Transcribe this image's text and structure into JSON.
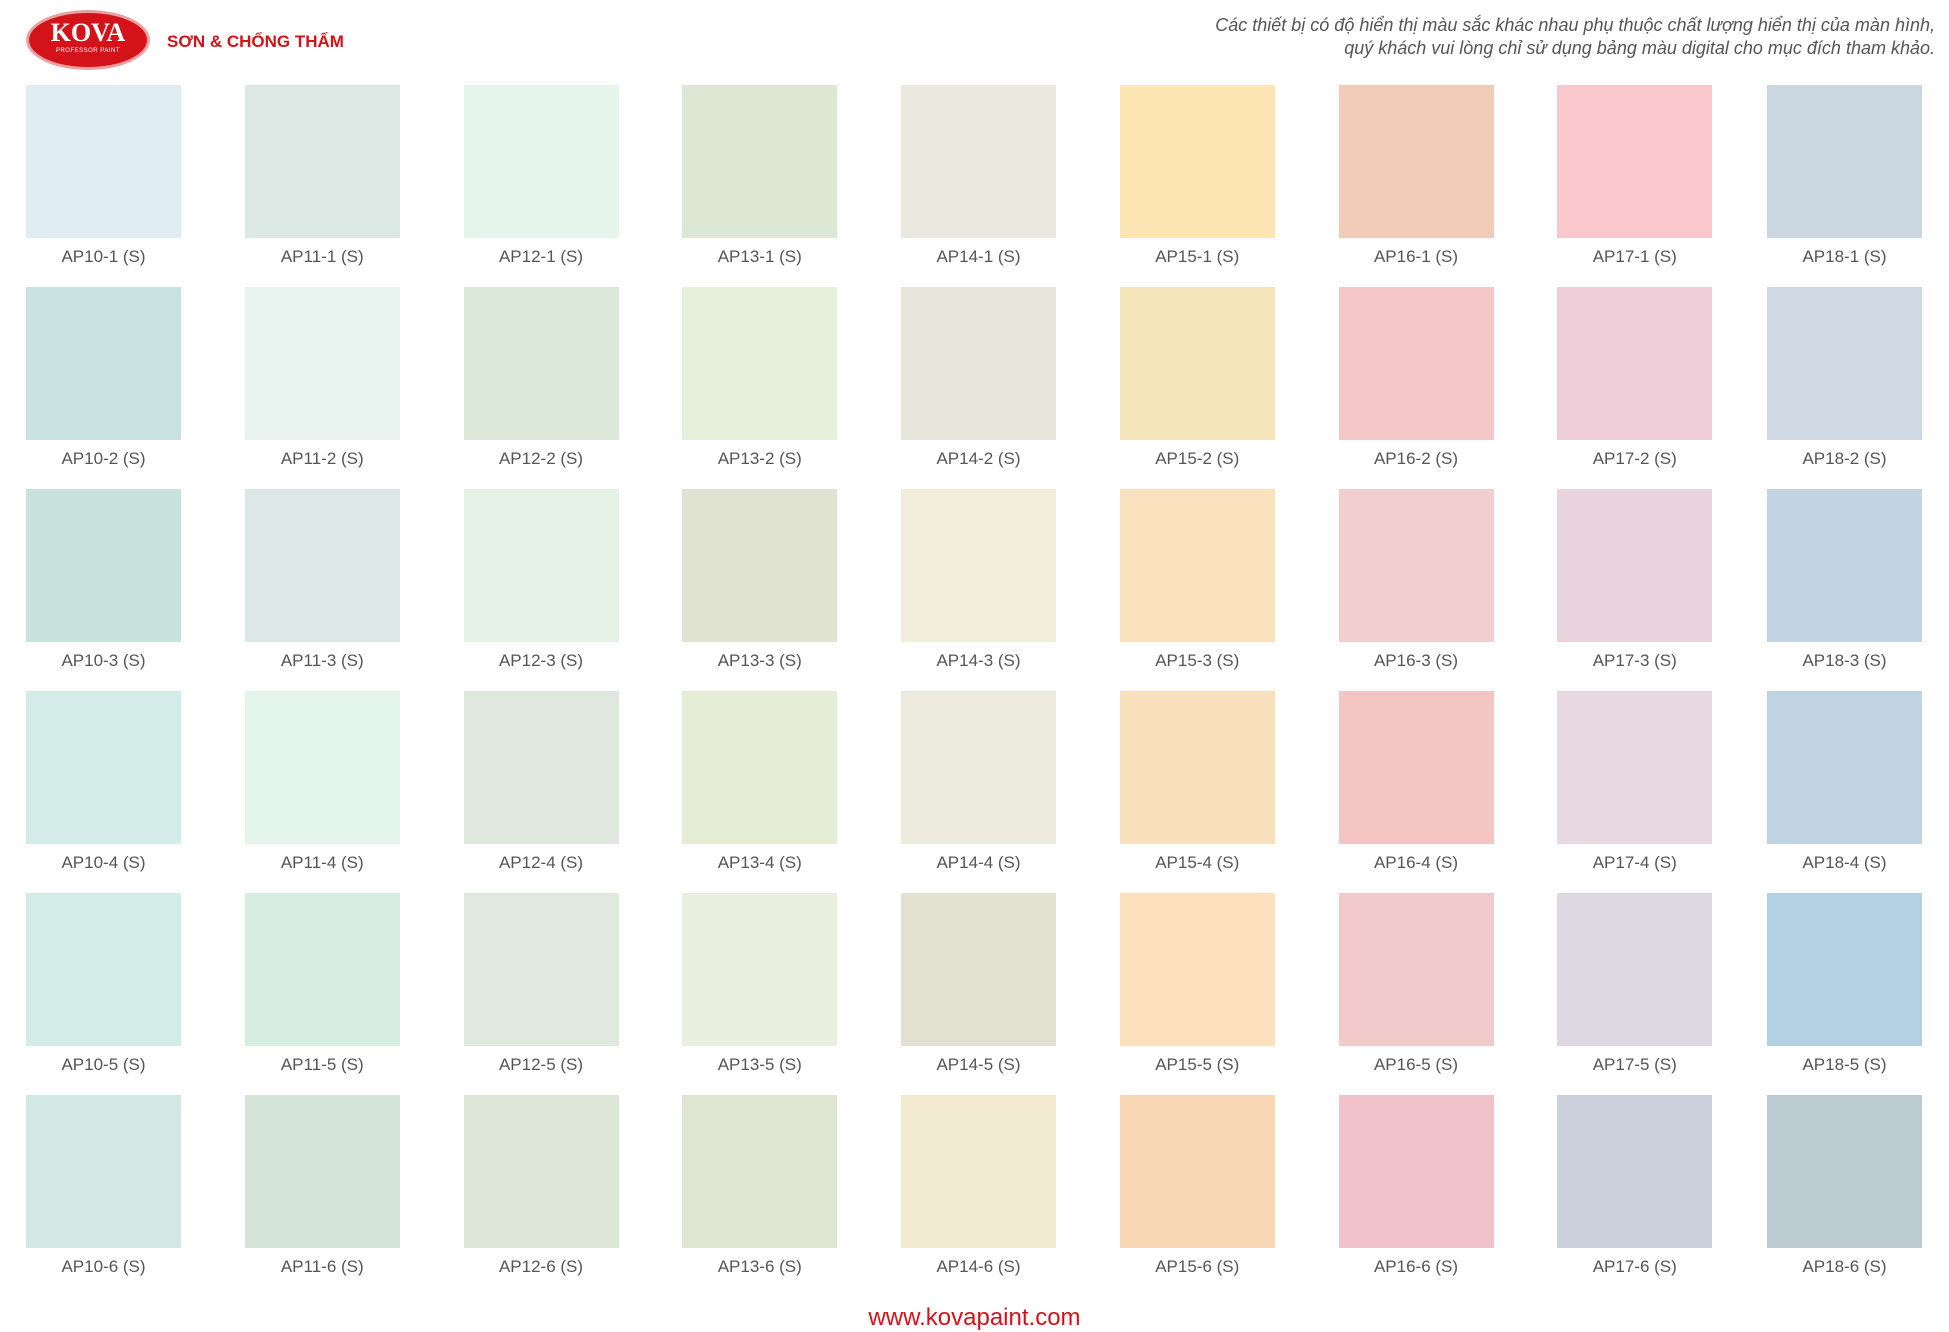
{
  "header": {
    "logo": {
      "name": "KOVA",
      "tagline": "PROFESSOR PAINT"
    },
    "title": "SƠN & CHỐNG THẤM",
    "disclaimer": [
      "Các thiết bị có độ hiển thị màu sắc khác nhau phụ thuộc chất lượng hiển thị của màn hình,",
      "quý khách vui lòng chỉ sử dụng bảng màu digital cho mục đích tham khảo."
    ]
  },
  "swatches": [
    [
      {
        "label": "AP10-1 (S)",
        "color": "#dfedf2"
      },
      {
        "label": "AP11-1 (S)",
        "color": "#dce8e4"
      },
      {
        "label": "AP12-1 (S)",
        "color": "#e6f5ec"
      },
      {
        "label": "AP13-1 (S)",
        "color": "#dde8d4"
      },
      {
        "label": "AP14-1 (S)",
        "color": "#e9e9e0"
      },
      {
        "label": "AP15-1 (S)",
        "color": "#fde5b4"
      },
      {
        "label": "AP16-1 (S)",
        "color": "#f2cbb8"
      },
      {
        "label": "AP17-1 (S)",
        "color": "#f8c8cc"
      },
      {
        "label": "AP18-1 (S)",
        "color": "#cbd7e0"
      }
    ],
    [
      {
        "label": "AP10-2 (S)",
        "color": "#c8e3e0"
      },
      {
        "label": "AP11-2 (S)",
        "color": "#e9f4f1"
      },
      {
        "label": "AP12-2 (S)",
        "color": "#dce9d9"
      },
      {
        "label": "AP13-2 (S)",
        "color": "#e6f0db"
      },
      {
        "label": "AP14-2 (S)",
        "color": "#e6e6da"
      },
      {
        "label": "AP15-2 (S)",
        "color": "#f5e5ba"
      },
      {
        "label": "AP16-2 (S)",
        "color": "#f4c6c8"
      },
      {
        "label": "AP17-2 (S)",
        "color": "#f1cfda"
      },
      {
        "label": "AP18-2 (S)",
        "color": "#ced9e4"
      }
    ],
    [
      {
        "label": "AP10-3 (S)",
        "color": "#c8e2dc"
      },
      {
        "label": "AP11-3 (S)",
        "color": "#dce8e6"
      },
      {
        "label": "AP12-3 (S)",
        "color": "#e6f2e6"
      },
      {
        "label": "AP13-3 (S)",
        "color": "#e0e3d1"
      },
      {
        "label": "AP14-3 (S)",
        "color": "#f1eedb"
      },
      {
        "label": "AP15-3 (S)",
        "color": "#f9e2bd"
      },
      {
        "label": "AP16-3 (S)",
        "color": "#f2cfcf"
      },
      {
        "label": "AP17-3 (S)",
        "color": "#e9d3dd"
      },
      {
        "label": "AP18-3 (S)",
        "color": "#c2d3e2"
      }
    ],
    [
      {
        "label": "AP10-4 (S)",
        "color": "#d4ece8"
      },
      {
        "label": "AP11-4 (S)",
        "color": "#e2f4ec"
      },
      {
        "label": "AP12-4 (S)",
        "color": "#dfe8dc"
      },
      {
        "label": "AP13-4 (S)",
        "color": "#e6edd7"
      },
      {
        "label": "AP14-4 (S)",
        "color": "#ebeadd"
      },
      {
        "label": "AP15-4 (S)",
        "color": "#f8e0bd"
      },
      {
        "label": "AP16-4 (S)",
        "color": "#f4c6c3"
      },
      {
        "label": "AP17-4 (S)",
        "color": "#e8d8e0"
      },
      {
        "label": "AP18-4 (S)",
        "color": "#bfd3e2"
      }
    ],
    [
      {
        "label": "AP10-5 (S)",
        "color": "#d4ece7"
      },
      {
        "label": "AP11-5 (S)",
        "color": "#d5ede3"
      },
      {
        "label": "AP12-5 (S)",
        "color": "#e1eadf"
      },
      {
        "label": "AP13-5 (S)",
        "color": "#eaf0e0"
      },
      {
        "label": "AP14-5 (S)",
        "color": "#e3e1d1"
      },
      {
        "label": "AP15-5 (S)",
        "color": "#fde0bd"
      },
      {
        "label": "AP16-5 (S)",
        "color": "#f2cacc"
      },
      {
        "label": "AP17-5 (S)",
        "color": "#ddd8e2"
      },
      {
        "label": "AP18-5 (S)",
        "color": "#b4d1e3"
      }
    ],
    [
      {
        "label": "AP10-6 (S)",
        "color": "#d2e8e2"
      },
      {
        "label": "AP11-6 (S)",
        "color": "#d5e6d8"
      },
      {
        "label": "AP12-6 (S)",
        "color": "#dbe6d7"
      },
      {
        "label": "AP13-6 (S)",
        "color": "#dfe6d1"
      },
      {
        "label": "AP14-6 (S)",
        "color": "#f1e9d0"
      },
      {
        "label": "AP15-6 (S)",
        "color": "#f9d7b5"
      },
      {
        "label": "AP16-6 (S)",
        "color": "#f2c2ca"
      },
      {
        "label": "AP17-6 (S)",
        "color": "#cbd0dc"
      },
      {
        "label": "AP18-6 (S)",
        "color": "#bccad1"
      }
    ]
  ],
  "footer": {
    "url": "www.kovapaint.com"
  }
}
